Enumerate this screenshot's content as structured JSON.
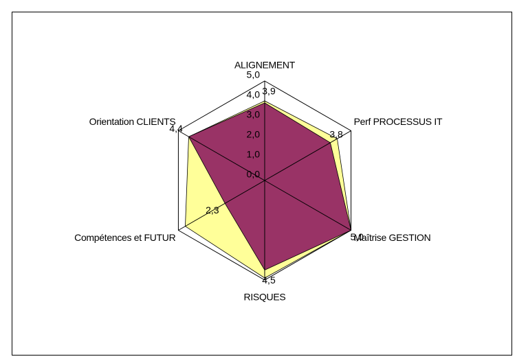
{
  "chart_data": {
    "type": "radar",
    "categories": [
      "ALIGNEMENT",
      "Perf PROCESSUS IT",
      "Maîtrise GESTION",
      "RISQUES",
      "Compétences et FUTUR",
      "Orientation CLIENTS"
    ],
    "series": [
      {
        "color": "#ffff99",
        "values": [
          4.0,
          4.2,
          5.0,
          4.9,
          4.6,
          4.4
        ]
      },
      {
        "color": "#993366",
        "values": [
          3.9,
          3.8,
          5.0,
          4.5,
          2.3,
          4.4
        ],
        "value_labels": [
          "3,9",
          "3,8",
          "5,0",
          "4,5",
          "2,3",
          "4,4"
        ]
      }
    ],
    "rlim": [
      0,
      5
    ],
    "rticks": [
      {
        "value": 0,
        "label": "0,0"
      },
      {
        "value": 1,
        "label": "1,0"
      },
      {
        "value": 2,
        "label": "2,0"
      },
      {
        "value": 3,
        "label": "3,0"
      },
      {
        "value": 4,
        "label": "4,0"
      },
      {
        "value": 5,
        "label": "5,0"
      }
    ],
    "grid": true
  }
}
